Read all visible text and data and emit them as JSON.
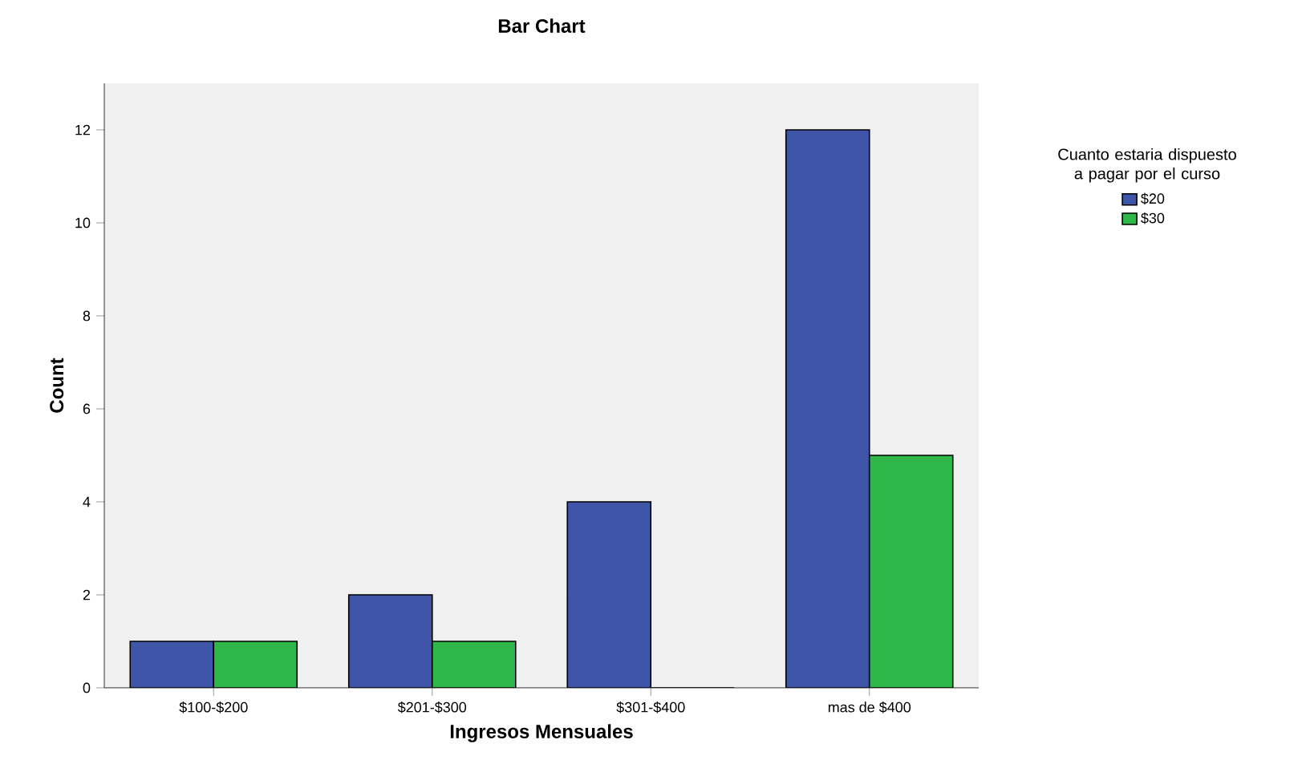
{
  "chart_data": {
    "type": "bar",
    "title": "Bar Chart",
    "xlabel": "Ingresos Mensuales",
    "ylabel": "Count",
    "legend_title": "Cuanto estaria dispuesto a pagar por el curso",
    "categories": [
      "$100-$200",
      "$201-$300",
      "$301-$400",
      "mas de $400"
    ],
    "series": [
      {
        "name": "$20",
        "color": "#3f56a8",
        "values": [
          1,
          2,
          4,
          12
        ]
      },
      {
        "name": "$30",
        "color": "#2eb84a",
        "values": [
          1,
          1,
          0,
          5
        ]
      }
    ],
    "ylim": [
      0,
      13
    ],
    "yticks": [
      0,
      2,
      4,
      6,
      8,
      10,
      12
    ],
    "grid": false,
    "legend": "right"
  }
}
